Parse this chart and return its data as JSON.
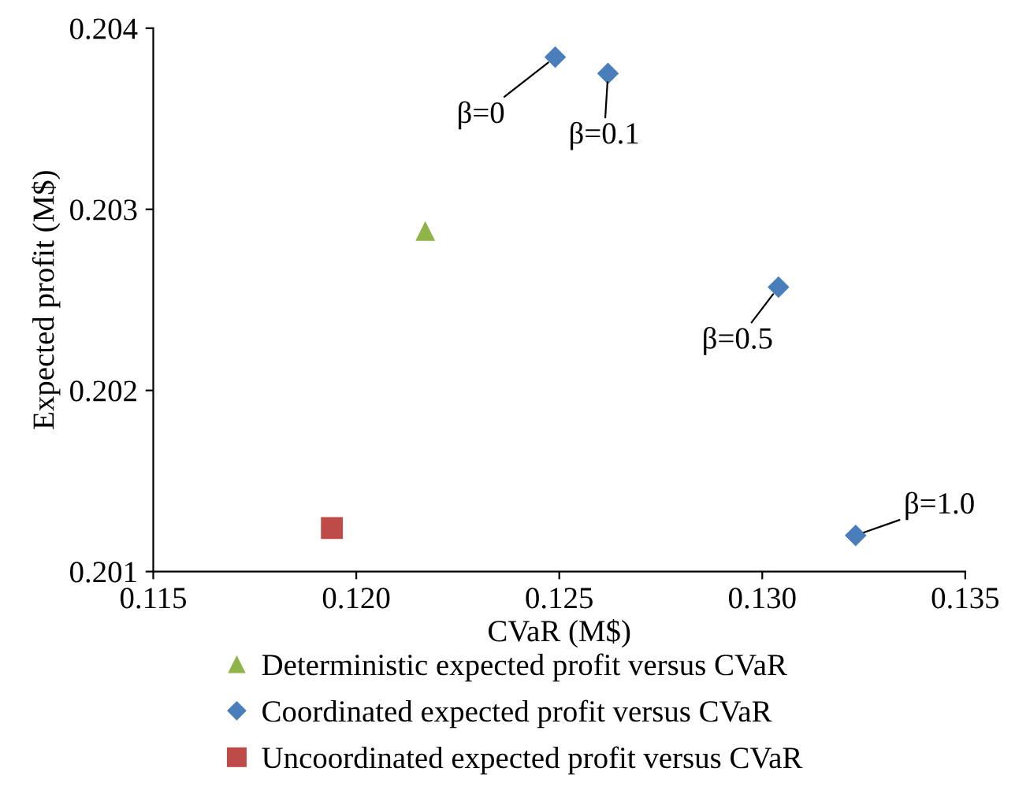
{
  "chart_data": {
    "type": "scatter",
    "xlabel": "CVaR (M$)",
    "ylabel": "Expected profit (M$)",
    "xlim": [
      0.115,
      0.135
    ],
    "xticks": [
      {
        "value": 0.115,
        "label": "0.115"
      },
      {
        "value": 0.12,
        "label": "0.120"
      },
      {
        "value": 0.125,
        "label": "0.125"
      },
      {
        "value": 0.13,
        "label": "0.130"
      },
      {
        "value": 0.135,
        "label": "0.135"
      }
    ],
    "ylim": [
      0.201,
      0.204
    ],
    "yticks": [
      0.201,
      0.202,
      0.203,
      0.204
    ],
    "grid": false,
    "legend": "bottom",
    "series": [
      {
        "name": "Deterministic expected profit versus CVaR",
        "color": "#8fb54a",
        "marker": "triangle",
        "x": [
          0.1217
        ],
        "values": [
          0.20288
        ]
      },
      {
        "name": "Coordinated expected profit versus CVaR",
        "color": "#4a7ebb",
        "marker": "diamond",
        "x": [
          0.1249,
          0.1262,
          0.1304,
          0.1323
        ],
        "values": [
          0.20384,
          0.20375,
          0.20257,
          0.2012
        ]
      },
      {
        "name": "Uncoordinated expected profit versus CVaR",
        "color": "#be4b48",
        "marker": "square",
        "x": [
          0.1194
        ],
        "values": [
          0.20124
        ]
      }
    ],
    "annotations": [
      {
        "text": "β=0",
        "x": 0.1249,
        "y": 0.20384
      },
      {
        "text": "β=0.1",
        "x": 0.1262,
        "y": 0.20375
      },
      {
        "text": "β=0.5",
        "x": 0.1304,
        "y": 0.20257
      },
      {
        "text": "β=1.0",
        "x": 0.1323,
        "y": 0.2012
      }
    ]
  }
}
